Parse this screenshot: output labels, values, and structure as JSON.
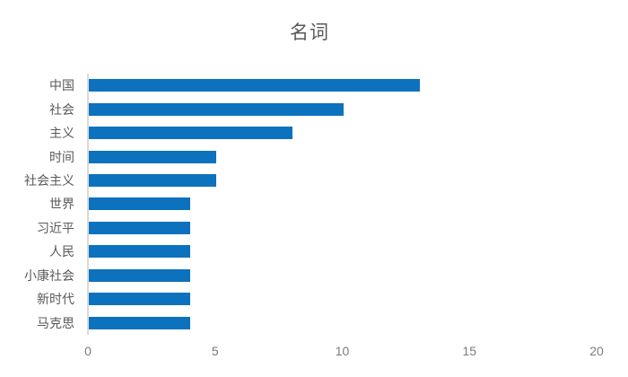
{
  "chart_data": {
    "type": "bar",
    "orientation": "horizontal",
    "title": "名词",
    "categories": [
      "中国",
      "社会",
      "主义",
      "时间",
      "社会主义",
      "世界",
      "习近平",
      "人民",
      "小康社会",
      "新时代",
      "马克思"
    ],
    "values": [
      13,
      10,
      8,
      5,
      5,
      4,
      4,
      4,
      4,
      4,
      4
    ],
    "xlabel": "",
    "ylabel": "",
    "xlim": [
      0,
      20
    ],
    "xticks": [
      0,
      5,
      10,
      15,
      20
    ],
    "grid": false,
    "legend": false,
    "colors": {
      "bar": "#0d72bd",
      "title_text": "#595959",
      "category_text": "#595959",
      "tick_text": "#7a7a7a",
      "axis_line": "#d9d9d9",
      "background": "#ffffff"
    }
  }
}
